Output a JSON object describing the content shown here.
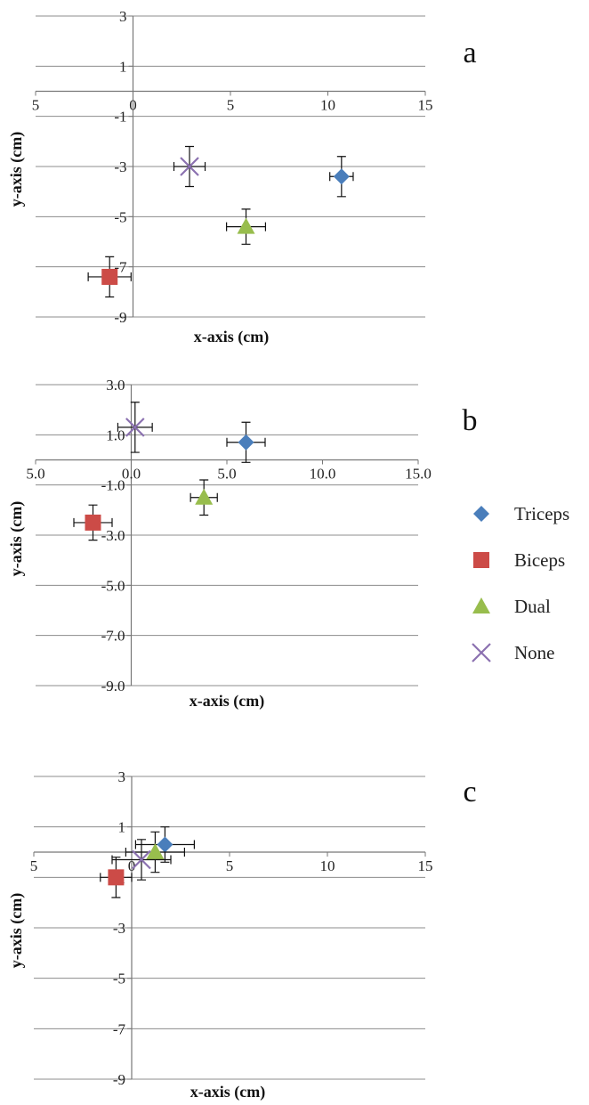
{
  "legend": [
    {
      "name": "Triceps",
      "color": "#4a7ebb",
      "marker": "diamond"
    },
    {
      "name": "Biceps",
      "color": "#cc4b47",
      "marker": "square"
    },
    {
      "name": "Dual",
      "color": "#98bd4d",
      "marker": "triangle"
    },
    {
      "name": "None",
      "color": "#8b71b0",
      "marker": "cross"
    }
  ],
  "chart_data": [
    {
      "type": "scatter",
      "panel_label": "a",
      "xlabel": "x-axis (cm)",
      "ylabel": "y-axis (cm)",
      "xlim": [
        -5,
        15
      ],
      "ylim": [
        -9,
        3
      ],
      "x_ticks": [
        "5",
        "0",
        "5",
        "10",
        "15"
      ],
      "y_ticks": [
        "3",
        "1",
        "-1",
        "-3",
        "-5",
        "-7",
        "-9"
      ],
      "grid": true,
      "series": [
        {
          "name": "Triceps",
          "x": 10.7,
          "y": -3.4,
          "x_err": 0.6,
          "y_err": 0.8
        },
        {
          "name": "Biceps",
          "x": -1.2,
          "y": -7.4,
          "x_err": 1.1,
          "y_err": 0.8
        },
        {
          "name": "Dual",
          "x": 5.8,
          "y": -5.4,
          "x_err": 1.0,
          "y_err": 0.7
        },
        {
          "name": "None",
          "x": 2.9,
          "y": -3.0,
          "x_err": 0.8,
          "y_err": 0.8
        }
      ]
    },
    {
      "type": "scatter",
      "panel_label": "b",
      "xlabel": "x-axis (cm)",
      "ylabel": "y-axis (cm)",
      "xlim": [
        -5,
        15
      ],
      "ylim": [
        -9,
        3
      ],
      "x_ticks": [
        "5.0",
        "0.0",
        "5.0",
        "10.0",
        "15.0"
      ],
      "y_ticks": [
        "3.0",
        "1.0",
        "-1.0",
        "-3.0",
        "-5.0",
        "-7.0",
        "-9.0"
      ],
      "grid": true,
      "series": [
        {
          "name": "Triceps",
          "x": 6.0,
          "y": 0.7,
          "x_err": 1.0,
          "y_err": 0.8
        },
        {
          "name": "Biceps",
          "x": -2.0,
          "y": -2.5,
          "x_err": 1.0,
          "y_err": 0.7
        },
        {
          "name": "Dual",
          "x": 3.8,
          "y": -1.5,
          "x_err": 0.7,
          "y_err": 0.7
        },
        {
          "name": "None",
          "x": 0.2,
          "y": 1.3,
          "x_err": 0.9,
          "y_err": 1.0
        }
      ]
    },
    {
      "type": "scatter",
      "panel_label": "c",
      "xlabel": "x-axis (cm)",
      "ylabel": "y-axis (cm)",
      "xlim": [
        -5,
        15
      ],
      "ylim": [
        -9,
        3
      ],
      "x_ticks": [
        "5",
        "0",
        "5",
        "10",
        "15"
      ],
      "y_ticks": [
        "3",
        "1",
        "-1",
        "-3",
        "-5",
        "-7",
        "-9"
      ],
      "grid": true,
      "series": [
        {
          "name": "Triceps",
          "x": 1.7,
          "y": 0.3,
          "x_err": 1.5,
          "y_err": 0.7
        },
        {
          "name": "Biceps",
          "x": -0.8,
          "y": -1.0,
          "x_err": 0.8,
          "y_err": 0.8
        },
        {
          "name": "Dual",
          "x": 1.2,
          "y": 0.0,
          "x_err": 1.5,
          "y_err": 0.8
        },
        {
          "name": "None",
          "x": 0.5,
          "y": -0.3,
          "x_err": 1.5,
          "y_err": 0.8
        }
      ]
    }
  ]
}
